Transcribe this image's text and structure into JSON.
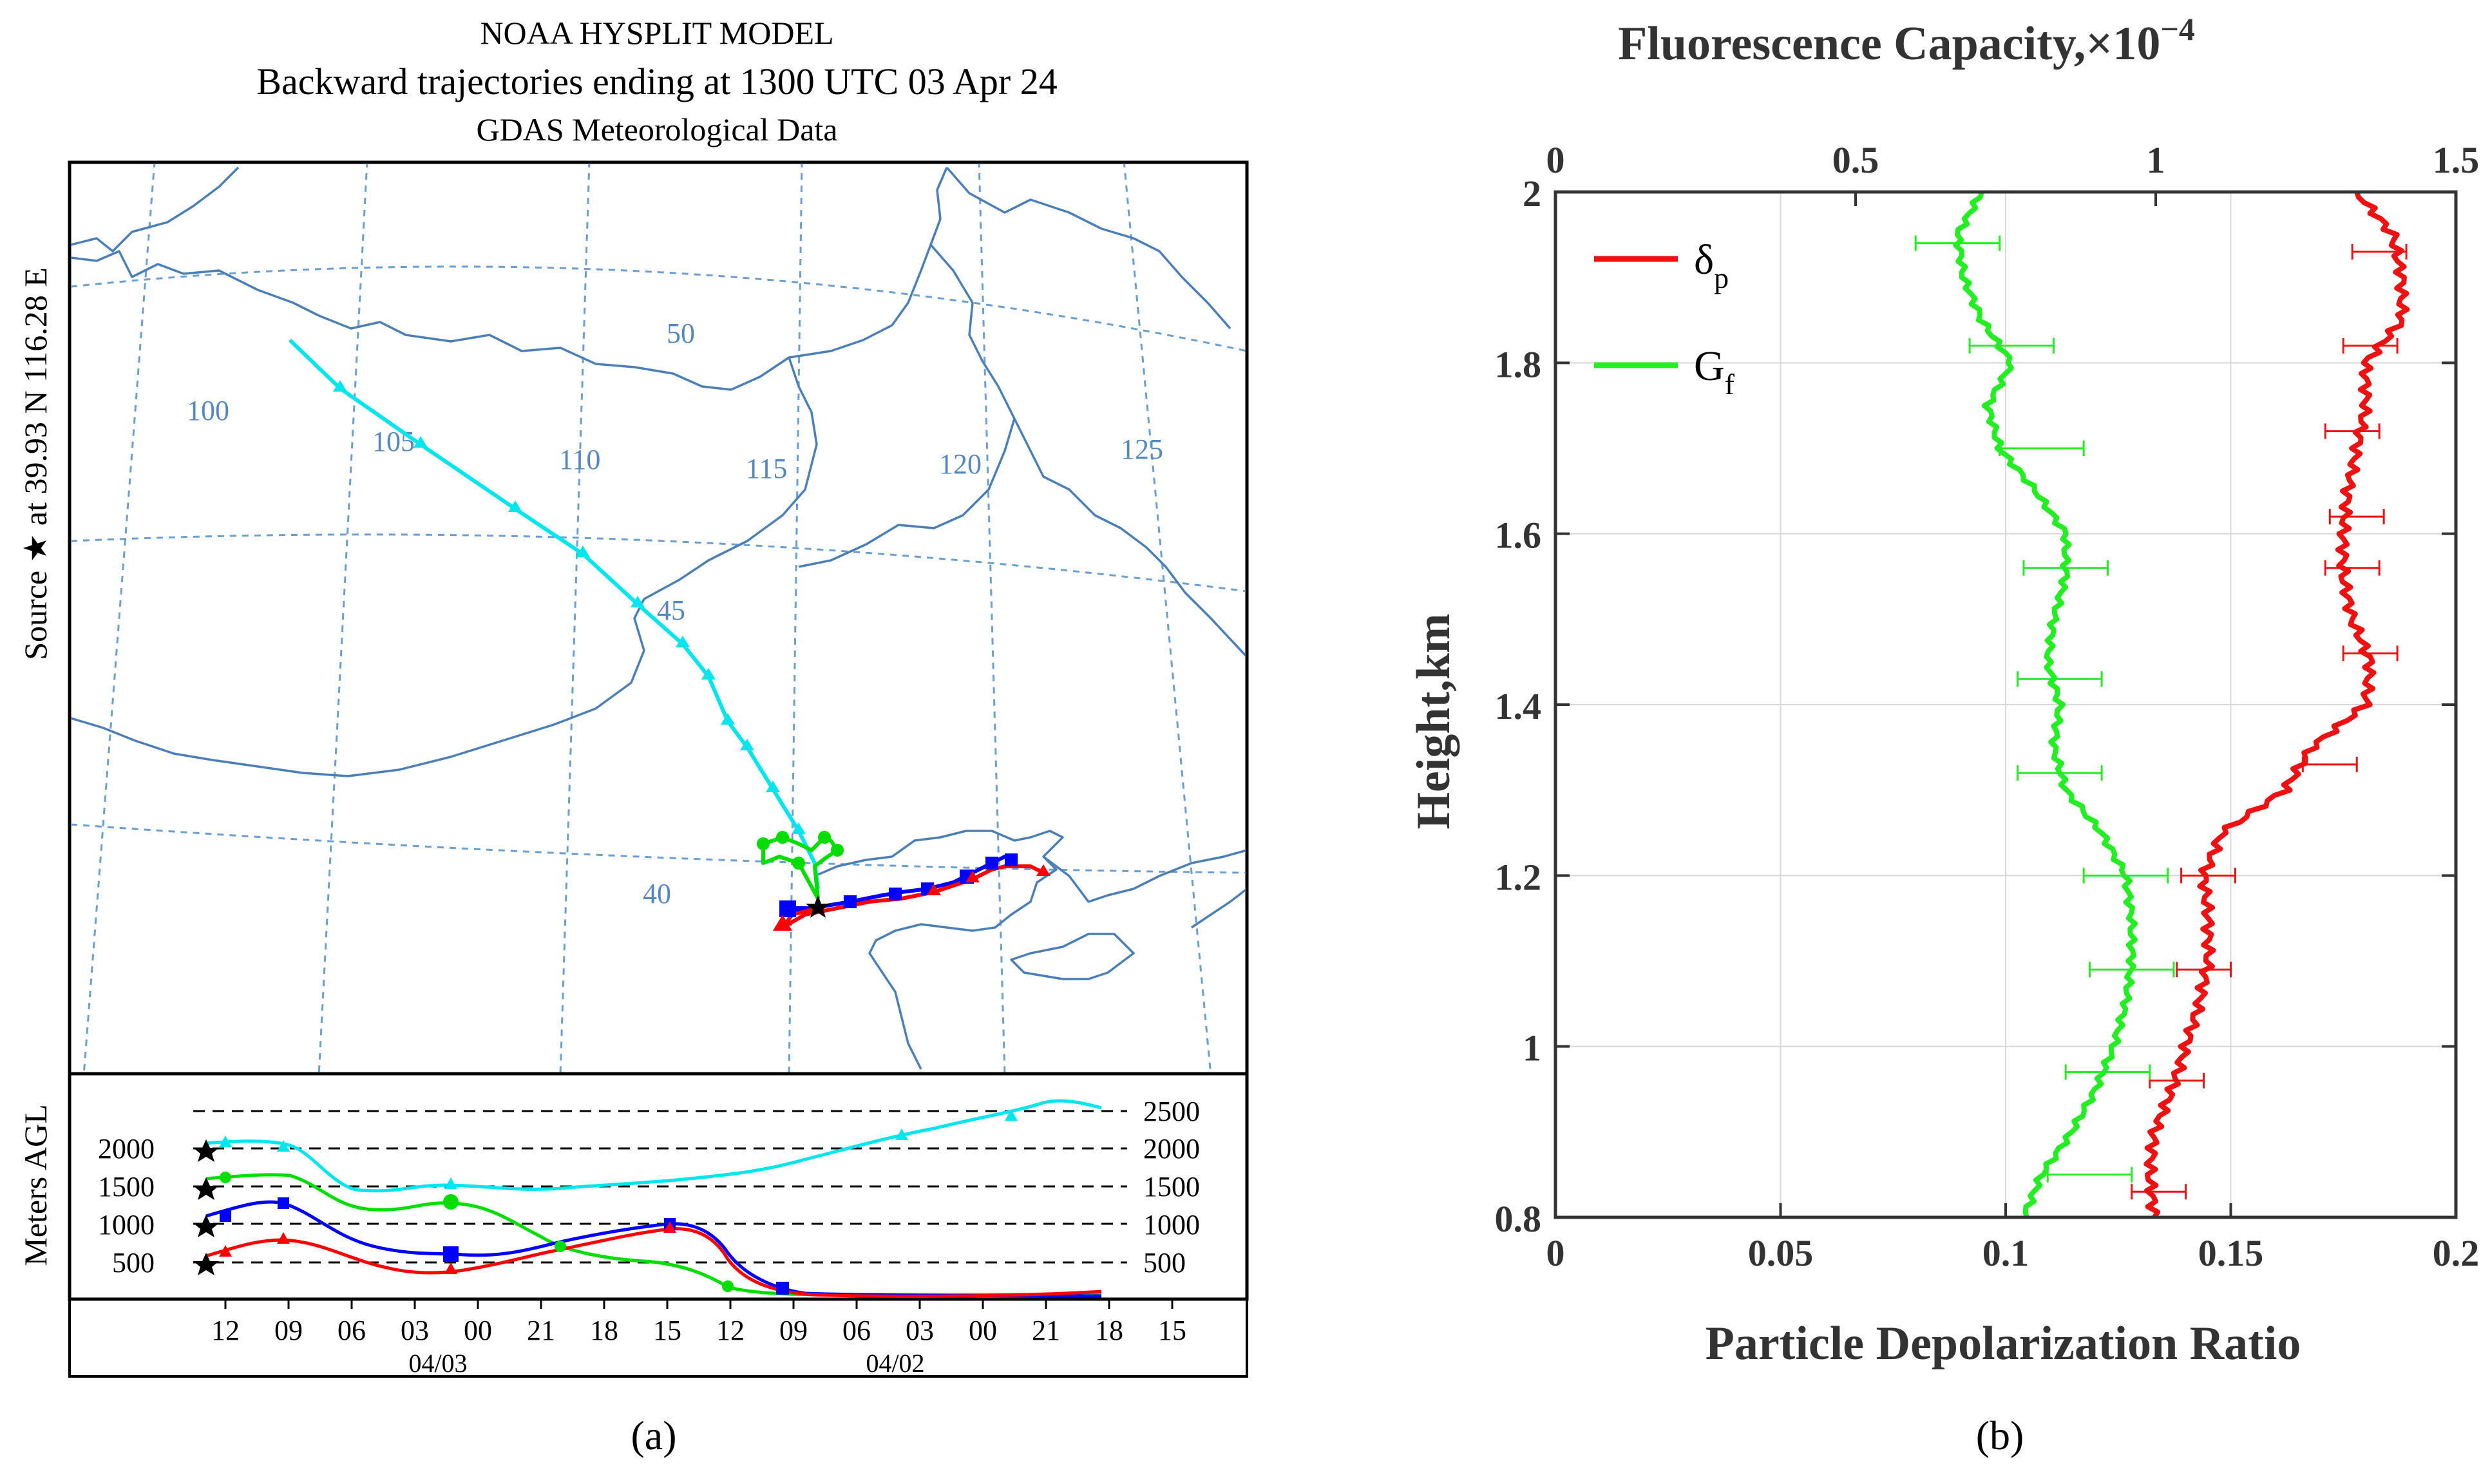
{
  "panel_a": {
    "title_line1": "NOAA HYSPLIT MODEL",
    "title_line2": "Backward trajectories ending at 1300 UTC 03 Apr 24",
    "title_line3": "GDAS Meteorological Data",
    "side_label": "Source ★ at 39.93 N 116.28 E",
    "height_axis_label": "Meters AGL",
    "lon_labels": [
      "100",
      "105",
      "110",
      "115",
      "120",
      "125"
    ],
    "lat_labels": [
      "50",
      "45",
      "40"
    ],
    "height_levels": [
      "500",
      "1000",
      "1500",
      "2000",
      "2500"
    ],
    "time_ticks": [
      "12",
      "09",
      "06",
      "03",
      "00",
      "21",
      "18",
      "15",
      "12",
      "09",
      "06",
      "03",
      "00",
      "21",
      "18",
      "15"
    ],
    "date_labels": [
      "04/03",
      "04/02"
    ],
    "caption": "(a)",
    "colors": {
      "coast": "#4a7fb8",
      "grid": "#6a9fd4",
      "t500": "#ff0000",
      "t1000": "#0000ff",
      "t1500": "#00dd00",
      "t2000": "#00e5ee"
    }
  },
  "chart_data": {
    "type": "line",
    "title": "",
    "xlabel": "Particle Depolarization Ratio",
    "x2label": "Fluorescence Capacity,×10",
    "x2label_exp": "−4",
    "ylabel": "Height,km",
    "xlim": [
      0,
      0.2
    ],
    "x2lim": [
      0,
      1.5
    ],
    "ylim": [
      0.8,
      2.0
    ],
    "xticks": [
      "0",
      "0.05",
      "0.1",
      "0.15",
      "0.2"
    ],
    "x2ticks": [
      "0",
      "0.5",
      "1",
      "1.5"
    ],
    "yticks": [
      "0.8",
      "1",
      "1.2",
      "1.4",
      "1.6",
      "1.8",
      "2"
    ],
    "grid": true,
    "legend_position": "top-left",
    "series": [
      {
        "name": "δp",
        "legend_main": "δ",
        "legend_sub": "p",
        "color": "#ee1111",
        "axis": "bottom",
        "y": [
          0.8,
          0.85,
          0.9,
          0.95,
          1.0,
          1.05,
          1.1,
          1.15,
          1.2,
          1.25,
          1.3,
          1.35,
          1.4,
          1.45,
          1.5,
          1.55,
          1.6,
          1.65,
          1.7,
          1.75,
          1.8,
          1.85,
          1.9,
          1.95,
          2.0
        ],
        "x": [
          0.133,
          0.132,
          0.133,
          0.137,
          0.14,
          0.143,
          0.145,
          0.145,
          0.144,
          0.148,
          0.162,
          0.168,
          0.18,
          0.181,
          0.177,
          0.175,
          0.175,
          0.176,
          0.178,
          0.18,
          0.18,
          0.188,
          0.188,
          0.186,
          0.178
        ],
        "error_y": [
          0.83,
          0.96,
          1.09,
          1.2,
          1.33,
          1.46,
          1.56,
          1.62,
          1.72,
          1.82,
          1.93
        ],
        "error_x": [
          0.134,
          0.138,
          0.144,
          0.145,
          0.172,
          0.181,
          0.177,
          0.178,
          0.177,
          0.181,
          0.183
        ],
        "error_half": 0.006
      },
      {
        "name": "Gf",
        "legend_main": "G",
        "legend_sub": "f",
        "color": "#22ee22",
        "axis": "top",
        "y": [
          0.8,
          0.85,
          0.9,
          0.95,
          1.0,
          1.05,
          1.1,
          1.15,
          1.2,
          1.25,
          1.3,
          1.35,
          1.4,
          1.45,
          1.5,
          1.55,
          1.6,
          1.65,
          1.7,
          1.75,
          1.8,
          1.85,
          1.9,
          1.95,
          2.0
        ],
        "x": [
          0.78,
          0.81,
          0.86,
          0.9,
          0.93,
          0.95,
          0.96,
          0.96,
          0.95,
          0.91,
          0.85,
          0.83,
          0.84,
          0.82,
          0.83,
          0.85,
          0.85,
          0.8,
          0.74,
          0.72,
          0.76,
          0.71,
          0.68,
          0.67,
          0.71
        ],
        "error_y": [
          0.85,
          0.97,
          1.09,
          1.2,
          1.32,
          1.43,
          1.56,
          1.7,
          1.82,
          1.94
        ],
        "error_x": [
          0.89,
          0.92,
          0.96,
          0.95,
          0.84,
          0.84,
          0.85,
          0.81,
          0.76,
          0.67
        ],
        "error_half": 0.07
      }
    ],
    "caption": "(b)"
  }
}
